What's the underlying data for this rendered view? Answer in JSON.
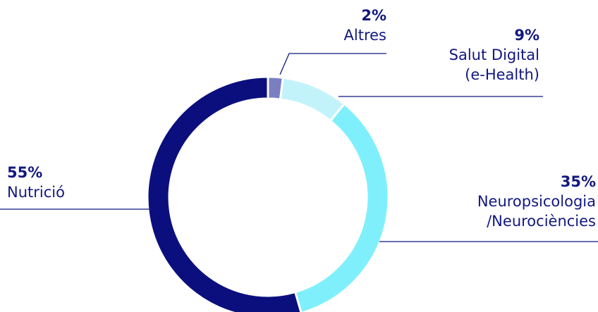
{
  "chart_data": {
    "type": "donut",
    "categories": [
      "Altres",
      "Salut Digital\n(e-Health)",
      "Neuropsicologia\n/Neurociències",
      "Nutrició"
    ],
    "values": [
      2,
      9,
      35,
      55
    ],
    "value_labels": [
      "2%",
      "9%",
      "35%",
      "55%"
    ],
    "colors": [
      "#7a7fc2",
      "#c2f3fb",
      "#7ff0fb",
      "#0b0f7d"
    ]
  }
}
